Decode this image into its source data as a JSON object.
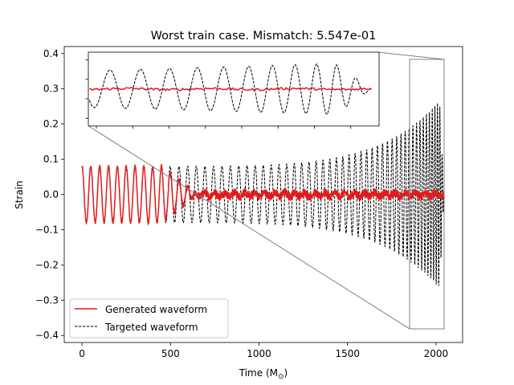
{
  "chart_data": {
    "type": "line",
    "title": "Worst train case. Mismatch: 5.547e-01",
    "xlabel": "Time (M",
    "xlabel_sub": "⊙",
    "xlabel_close": ")",
    "ylabel": "Strain",
    "xlim": [
      -100,
      2150
    ],
    "ylim": [
      -0.42,
      0.42
    ],
    "x_ticks": [
      0,
      500,
      1000,
      1500,
      2000
    ],
    "y_ticks": [
      -0.4,
      -0.3,
      -0.2,
      -0.1,
      0.0,
      0.1,
      0.2,
      0.3,
      0.4
    ],
    "x_tick_labels": [
      "0",
      "500",
      "1000",
      "1500",
      "2000"
    ],
    "y_tick_labels": [
      "−0.4",
      "−0.3",
      "−0.2",
      "−0.1",
      "0.0",
      "0.1",
      "0.2",
      "0.3",
      "0.4"
    ],
    "grid": false,
    "legend_position": "lower-left",
    "series": [
      {
        "name": "Generated waveform",
        "color": "#e31a1c",
        "style": "solid",
        "model": {
          "x_start": 0,
          "x_end": 2045,
          "samples": 2000,
          "track_until": 450,
          "fade_end": 650,
          "initial_amplitude": 0.08,
          "late_noise": 0.015
        }
      },
      {
        "name": "Targeted waveform",
        "color": "#000000",
        "style": "dashed",
        "model": {
          "x_start": 0,
          "x_end": 2045,
          "samples": 2000,
          "merger_time": 2048,
          "initial_amplitude": 0.08,
          "peak_amplitude": 0.28,
          "initial_period": 50,
          "final_period": 12
        }
      }
    ],
    "inset": {
      "xlim": [
        1855,
        2050
      ],
      "ylim": [
        -0.38,
        0.38
      ]
    }
  }
}
